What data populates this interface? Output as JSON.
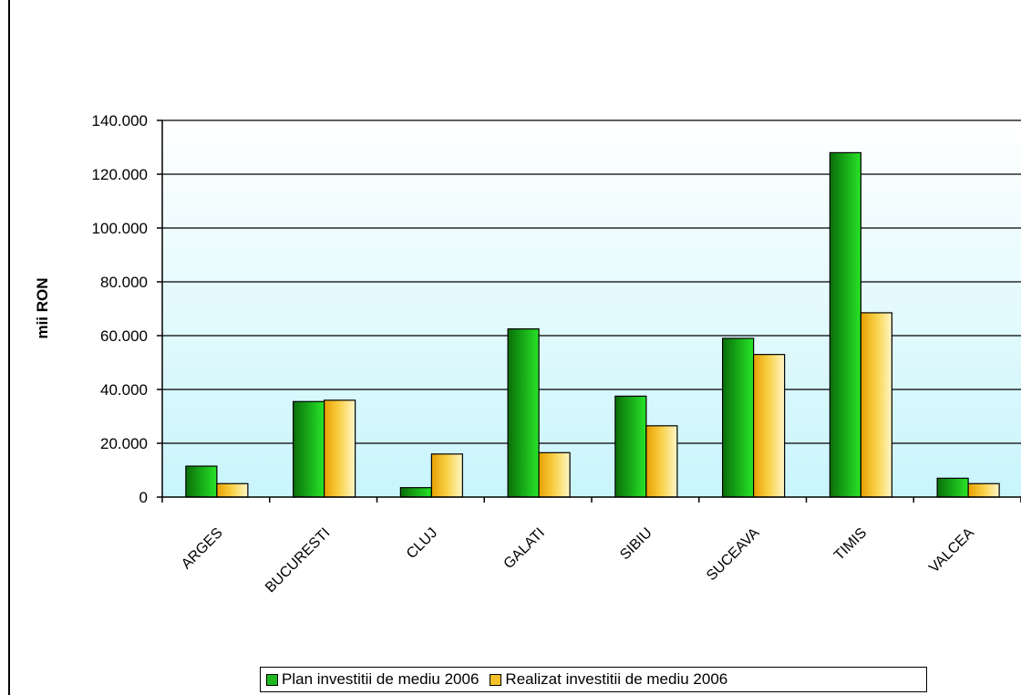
{
  "chart_data": {
    "type": "bar",
    "title": "",
    "xlabel": "",
    "ylabel": "mii RON",
    "ylim": [
      0,
      140000
    ],
    "yticks": [
      0,
      20000,
      40000,
      60000,
      80000,
      100000,
      120000,
      140000
    ],
    "ytick_labels": [
      "0",
      "20.000",
      "40.000",
      "60.000",
      "80.000",
      "100.000",
      "120.000",
      "140.000"
    ],
    "categories": [
      "ARGES",
      "BUCURESTI",
      "CLUJ",
      "GALATI",
      "SIBIU",
      "SUCEAVA",
      "TIMIS",
      "VALCEA"
    ],
    "series": [
      {
        "name": "Plan investitii de mediu 2006",
        "color": "#1fb81f",
        "values": [
          11500,
          35500,
          3500,
          62500,
          37500,
          59000,
          128000,
          7000
        ]
      },
      {
        "name": "Realizat investitii de mediu 2006",
        "color": "#f5c22a",
        "values": [
          5000,
          36000,
          16000,
          16500,
          26500,
          53000,
          68500,
          5000
        ]
      }
    ],
    "grid": true,
    "legend_position": "bottom",
    "plot_background": "#d6f7fb"
  }
}
